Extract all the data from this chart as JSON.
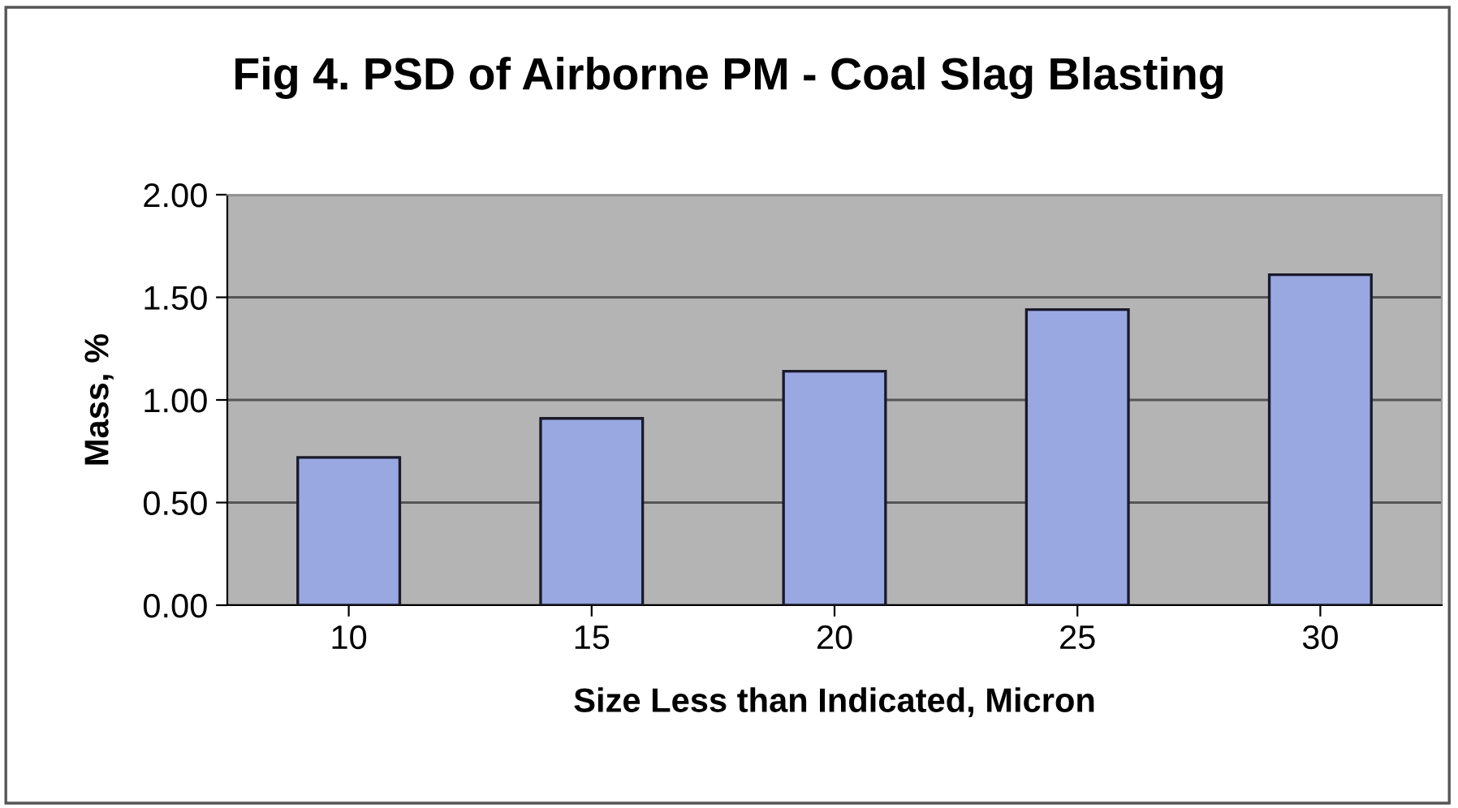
{
  "chart_data": {
    "type": "bar",
    "title": "Fig 4. PSD of Airborne PM - Coal Slag Blasting",
    "xlabel": "Size Less than Indicated, Micron",
    "ylabel": "Mass, %",
    "categories": [
      "10",
      "15",
      "20",
      "25",
      "30"
    ],
    "values": [
      0.72,
      0.91,
      1.14,
      1.44,
      1.61
    ],
    "color": "#9aa8e2",
    "ylim": [
      0,
      2
    ],
    "yticks": [
      {
        "value": 0,
        "label": "0.00"
      },
      {
        "value": 0.5,
        "label": "0.50"
      },
      {
        "value": 1,
        "label": "1.00"
      },
      {
        "value": 1.5,
        "label": "1.50"
      },
      {
        "value": 2,
        "label": "2.00"
      }
    ],
    "grid": "y"
  }
}
